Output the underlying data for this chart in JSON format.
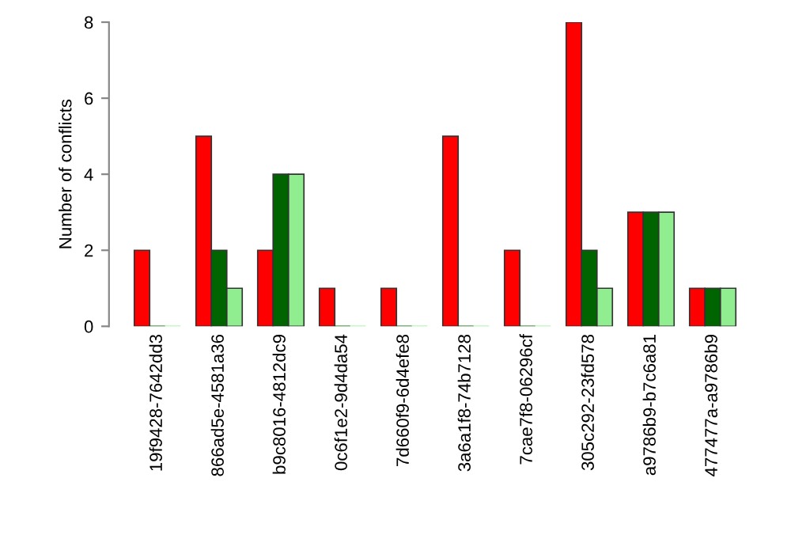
{
  "chart_data": {
    "type": "bar",
    "ylabel": "Number of conflicts",
    "categories": [
      "19f9428-7642dd3",
      "866ad5e-4581a36",
      "b9c8016-4812dc9",
      "0c6f1e2-9d4da54",
      "7d660f9-6d4efe8",
      "3a6a1f8-74b7128",
      "7cae7f8-06296cf",
      "305c292-23fd578",
      "a9786b9-b7c6a81",
      "477477a-a9786b9"
    ],
    "series": [
      {
        "color": "#ff0000",
        "values": [
          2,
          5,
          2,
          1,
          1,
          5,
          2,
          8,
          3,
          1
        ]
      },
      {
        "color": "#006400",
        "values": [
          0,
          2,
          4,
          0,
          0,
          0,
          0,
          2,
          3,
          1
        ]
      },
      {
        "color": "#90ee90",
        "values": [
          0,
          1,
          4,
          0,
          0,
          0,
          0,
          1,
          3,
          1
        ]
      }
    ],
    "ylim": [
      0,
      8
    ],
    "yticks": [
      0,
      2,
      4,
      6,
      8
    ],
    "grid": false,
    "legend": false
  }
}
